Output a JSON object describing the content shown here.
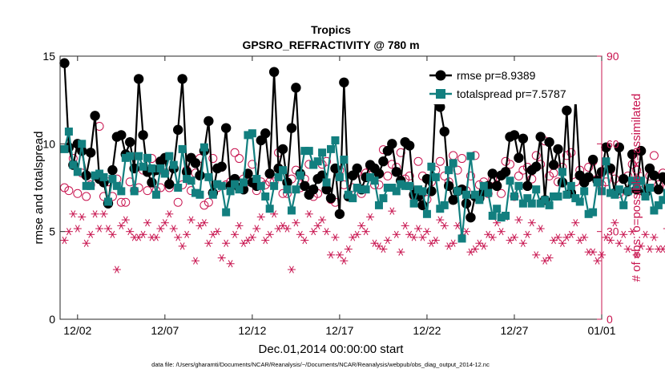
{
  "chart_data": {
    "type": "line",
    "title": "Tropics",
    "subtitle": "GPSRO_REFRACTIVITY @ 780 m",
    "xlabel": "Dec.01,2014 00:00:00 start",
    "ylabel": "rmse and totalspread",
    "ylabel_right": "# of obs: o=possible; ×=assimilated",
    "footnote": "data file: /Users/gharamti/Documents/NCAR/Reanalysis/~/Documents/NCAR/Reanalysis/webpub/obs_diag_output_2014-12.nc",
    "xlim_days": [
      0,
      31
    ],
    "ylim": [
      0,
      15
    ],
    "ylim_right": [
      0,
      90
    ],
    "x_ticks": [
      {
        "day": 1,
        "label": "12/02"
      },
      {
        "day": 6,
        "label": "12/07"
      },
      {
        "day": 11,
        "label": "12/12"
      },
      {
        "day": 16,
        "label": "12/17"
      },
      {
        "day": 21,
        "label": "12/22"
      },
      {
        "day": 26,
        "label": "12/27"
      },
      {
        "day": 31,
        "label": "01/01"
      }
    ],
    "y_ticks": [
      0,
      5,
      10,
      15
    ],
    "y_ticks_right": [
      0,
      30,
      60,
      90
    ],
    "legend_location": "top-right",
    "colors": {
      "rmse": "#000000",
      "totalspread": "#127f7f",
      "obs": "#c8144f"
    },
    "step_days": 0.25,
    "series": [
      {
        "name": "rmse pr=8.9389",
        "key": "rmse",
        "values": [
          14.6,
          9.8,
          8.8,
          10.0,
          9.6,
          8.2,
          9.5,
          11.6,
          8.0,
          7.8,
          6.6,
          8.5,
          10.4,
          10.5,
          9.4,
          10.1,
          8.6,
          13.7,
          10.5,
          8.4,
          7.8,
          8.5,
          9.0,
          9.2,
          7.7,
          8.6,
          10.8,
          13.7,
          8.4,
          9.2,
          8.9,
          8.2,
          9.6,
          11.3,
          7.2,
          8.6,
          8.7,
          10.9,
          7.6,
          8.0,
          7.5,
          7.4,
          8.3,
          7.8,
          7.6,
          10.2,
          10.6,
          8.3,
          14.1,
          8.6,
          9.7,
          7.8,
          10.9,
          13.2,
          8.3,
          7.6,
          7.1,
          7.4,
          8.0,
          8.2,
          7.4,
          6.9,
          8.6,
          6.0,
          13.5,
          7.0,
          8.2,
          8.6,
          7.4,
          8.1,
          8.8,
          8.6,
          8.3,
          9.0,
          9.6,
          10.0,
          8.4,
          7.9,
          10.1,
          9.9,
          7.1,
          7.0,
          6.5,
          8.0,
          7.3,
          12.5,
          12.1,
          10.7,
          7.6,
          6.8,
          7.3,
          7.4,
          6.6,
          5.8,
          7.0,
          6.9,
          7.3,
          7.6,
          8.3,
          7.6,
          8.2,
          8.4,
          10.4,
          10.5,
          9.2,
          10.3,
          7.6,
          8.5,
          8.7,
          10.4,
          6.8,
          10.1,
          8.8,
          9.7,
          7.8,
          11.9,
          7.2,
          12.6,
          8.2,
          7.8,
          8.1,
          9.1,
          7.9,
          8.4,
          9.8,
          8.6,
          7.2,
          9.8,
          8.0,
          7.3,
          9.4,
          7.4,
          9.6,
          7.2,
          8.6,
          8.2,
          7.4,
          8.1,
          7.9,
          8.7,
          8.5,
          7.8,
          11.3,
          9.4
        ]
      },
      {
        "name": "totalspread pr=7.5787",
        "key": "totalspread",
        "values": [
          9.7,
          10.7,
          8.8,
          8.4,
          10.0,
          7.6,
          7.6,
          8.2,
          8.3,
          8.1,
          6.7,
          8.0,
          7.6,
          7.3,
          9.2,
          9.3,
          7.3,
          9.3,
          8.7,
          9.2,
          8.6,
          7.1,
          8.6,
          8.3,
          9.3,
          8.8,
          7.5,
          9.7,
          8.0,
          7.9,
          7.2,
          7.1,
          9.8,
          8.1,
          7.1,
          7.7,
          7.6,
          6.1,
          7.3,
          7.7,
          7.4,
          7.8,
          10.5,
          10.6,
          8.0,
          7.6,
          7.0,
          6.3,
          7.6,
          8.1,
          8.5,
          7.4,
          6.2,
          7.4,
          8.2,
          9.6,
          9.6,
          8.8,
          9.0,
          9.5,
          7.8,
          9.7,
          10.2,
          8.1,
          9.1,
          7.1,
          6.9,
          7.5,
          7.4,
          7.4,
          8.1,
          7.9,
          6.5,
          6.9,
          7.5,
          7.5,
          7.3,
          7.7,
          7.6,
          7.6,
          6.6,
          7.4,
          7.3,
          6.0,
          8.7,
          8.1,
          6.3,
          6.5,
          8.5,
          8.9,
          7.3,
          4.6,
          7.1,
          9.3,
          7.1,
          6.8,
          7.6,
          7.2,
          5.9,
          6.3,
          5.8,
          5.9,
          7.9,
          7.0,
          7.6,
          6.6,
          6.9,
          6.6,
          7.4,
          6.6,
          6.8,
          6.5,
          7.0,
          7.0,
          8.4,
          7.1,
          7.6,
          6.9,
          6.7,
          7.3,
          6.0,
          6.1,
          7.8,
          7.3,
          9.0,
          7.2,
          7.1,
          7.4,
          6.5,
          7.3,
          7.9,
          7.6,
          7.9,
          7.0,
          7.5,
          6.2,
          6.5,
          6.8,
          7.2,
          6.6,
          7.4,
          7.5,
          10.4,
          9.1,
          7.3
        ]
      },
      {
        "name": "possible",
        "key": "possible",
        "axis": "right",
        "values": [
          45,
          44,
          55,
          43,
          50,
          42,
          46,
          49,
          66,
          42,
          47,
          42,
          48,
          40,
          40,
          47,
          44,
          45,
          51,
          44,
          55,
          44,
          45,
          50,
          45,
          52,
          40,
          46,
          51,
          44,
          50,
          55,
          39,
          40,
          55,
          45,
          52,
          46,
          47,
          57,
          55,
          48,
          47,
          53,
          44,
          47,
          46,
          47,
          47,
          57,
          43,
          43,
          48,
          51,
          45,
          48,
          53,
          42,
          43,
          53,
          54,
          41,
          40,
          51,
          46,
          42,
          45,
          50,
          43,
          50,
          52,
          46,
          46,
          58,
          49,
          53,
          52,
          57,
          48,
          49,
          42,
          54,
          49,
          41,
          47,
          51,
          54,
          49,
          47,
          56,
          51,
          55,
          44,
          49,
          56,
          46,
          47,
          43,
          48,
          46,
          43,
          54,
          53,
          42,
          49,
          51,
          52,
          48,
          56,
          53,
          61,
          49,
          50,
          47,
          52,
          56,
          57,
          47,
          51,
          48,
          52,
          54,
          48,
          46,
          47,
          51,
          48,
          43,
          48,
          49,
          53,
          51,
          44,
          43,
          49,
          56,
          46,
          50,
          45,
          42,
          47,
          54,
          52,
          59,
          42,
          64
        ]
      },
      {
        "name": "assimilated",
        "key": "assimilated",
        "axis": "right",
        "values": [
          27,
          30,
          36,
          31,
          35,
          26,
          29,
          36,
          31,
          36,
          31,
          29,
          17,
          32,
          34,
          30,
          28,
          28,
          29,
          33,
          28,
          28,
          31,
          33,
          36,
          31,
          28,
          25,
          29,
          34,
          20,
          32,
          33,
          26,
          29,
          30,
          21,
          26,
          19,
          29,
          32,
          26,
          27,
          28,
          31,
          35,
          27,
          29,
          36,
          31,
          32,
          31,
          17,
          33,
          29,
          27,
          36,
          30,
          32,
          34,
          30,
          22,
          28,
          22,
          20,
          24,
          28,
          29,
          32,
          30,
          35,
          26,
          25,
          24,
          27,
          37,
          29,
          23,
          32,
          29,
          28,
          31,
          28,
          30,
          26,
          27,
          34,
          32,
          25,
          26,
          32,
          28,
          30,
          23,
          24,
          26,
          25,
          29,
          28,
          33,
          30,
          35,
          27,
          28,
          34,
          26,
          29,
          33,
          22,
          31,
          20,
          21,
          27,
          28,
          26,
          28,
          29,
          33,
          27,
          28,
          23,
          23,
          20,
          22,
          28,
          27,
          33,
          26,
          29,
          24,
          30,
          22,
          25,
          29,
          24,
          28,
          24,
          24,
          31,
          30,
          27,
          23,
          26,
          24,
          23,
          36
        ]
      }
    ]
  }
}
